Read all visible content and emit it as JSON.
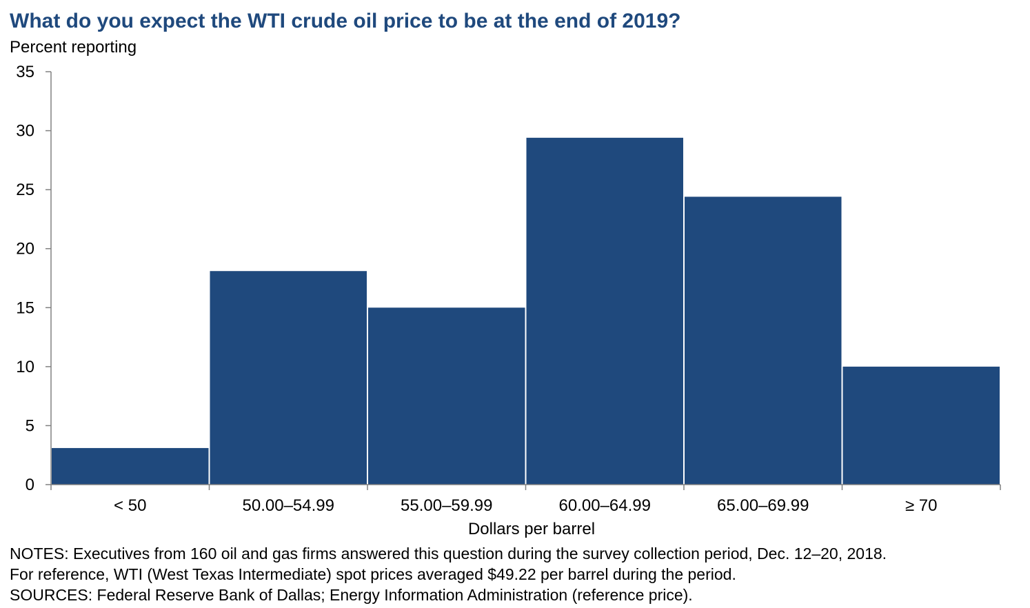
{
  "chart_data": {
    "type": "bar",
    "title": "What do you expect the WTI crude oil price to be at the end of 2019?",
    "ylabel": "Percent reporting",
    "xlabel": "Dollars per barrel",
    "categories": [
      "< 50",
      "50.00–54.99",
      "55.00–59.99",
      "60.00–64.99",
      "65.00–69.99",
      "≥ 70"
    ],
    "values": [
      3.1,
      18.1,
      15.0,
      29.4,
      24.4,
      10.0
    ],
    "ylim": [
      0,
      35
    ],
    "yticks": [
      "0",
      "5",
      "10",
      "15",
      "20",
      "25",
      "30",
      "35"
    ],
    "grid": false,
    "bar_color": "#1f497d"
  },
  "notes": [
    "NOTES: Executives from 160 oil and gas firms answered this question during the survey collection period, Dec. 12–20, 2018.",
    "For reference, WTI (West Texas Intermediate) spot prices averaged $49.22 per barrel during the period.",
    "SOURCES: Federal Reserve Bank of Dallas; Energy Information Administration (reference price)."
  ]
}
